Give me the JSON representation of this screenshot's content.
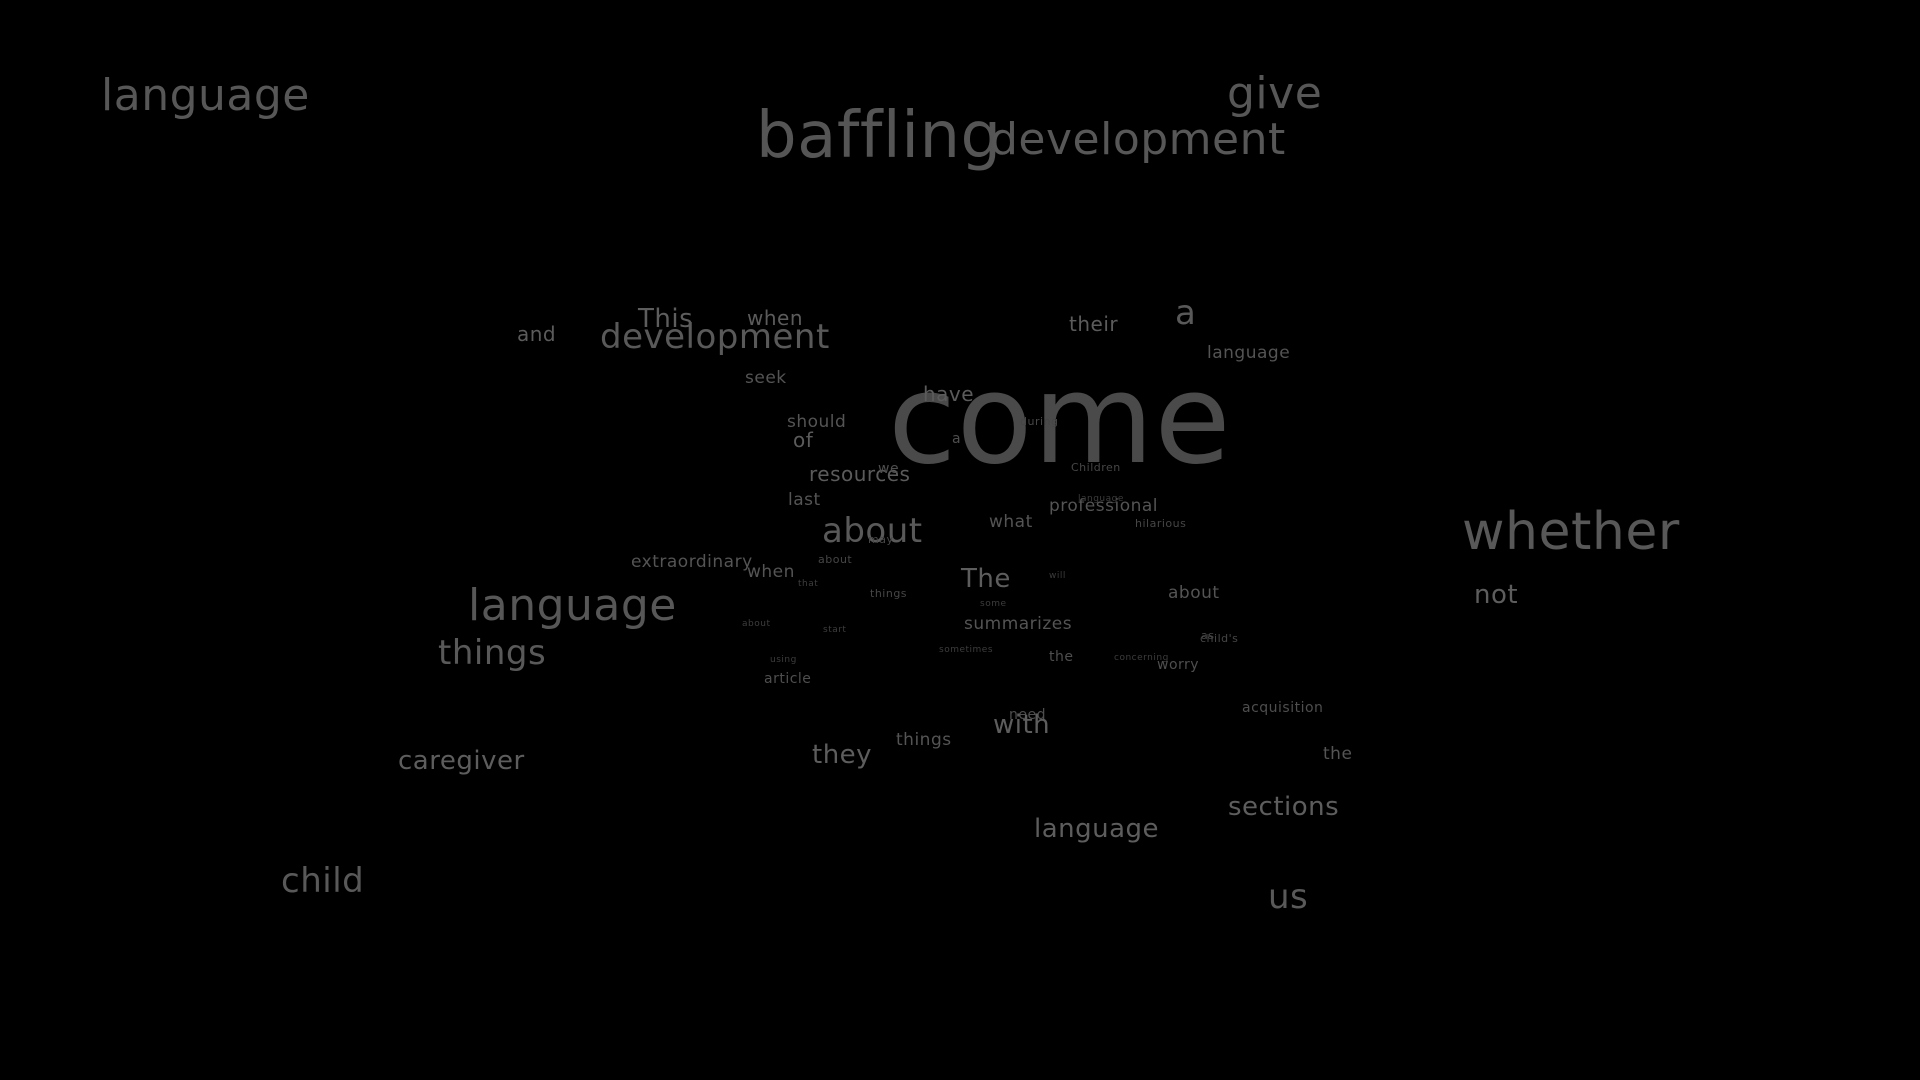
{
  "words": {
    "come": "come",
    "baffling": "baffling",
    "development_top": "development",
    "give": "give",
    "language_topleft": "language",
    "whether": "whether",
    "not": "not",
    "language_mid": "language",
    "things_left": "things",
    "caregiver": "caregiver",
    "child": "child",
    "and": "and",
    "this": "This",
    "development_mid": "development",
    "when_top": "when",
    "their": "their",
    "a": "a",
    "language_right": "language",
    "seek": "seek",
    "have": "have",
    "should": "should",
    "of": "of",
    "resources": "resources",
    "we": "we",
    "last": "last",
    "about_big": "about",
    "may": "may",
    "what": "what",
    "professional": "professional",
    "language_small": "language",
    "hilarious": "hilarious",
    "children": "Children",
    "during": "during",
    "a_small": "a",
    "extraordinary": "extraordinary",
    "when_mid": "when",
    "about_small1": "about",
    "that": "that",
    "things_mid": "things",
    "the_cap": "The",
    "will": "will",
    "some": "some",
    "about_right": "about",
    "summarizes": "summarizes",
    "as": "as",
    "childs": "child's",
    "about_small2": "about",
    "start": "start",
    "sometimes": "sometimes",
    "the_mid": "the",
    "concerning": "concerning",
    "worry": "worry",
    "using": "using",
    "article": "article",
    "acquisition": "acquisition",
    "need": "need",
    "with": "with",
    "things_low": "things",
    "they": "they",
    "the_right": "the",
    "sections": "sections",
    "language_low": "language",
    "us": "us"
  }
}
